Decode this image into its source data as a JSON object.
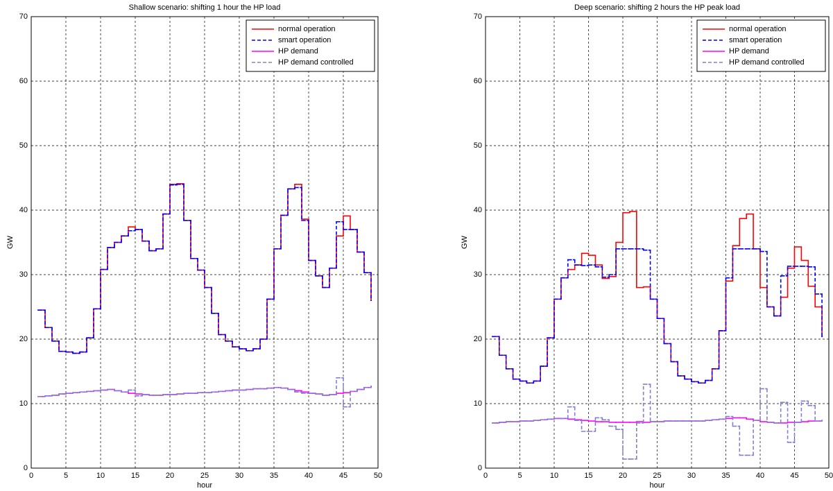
{
  "chart_data": [
    {
      "type": "line",
      "step": true,
      "title": "Shallow scenario: shifting 1 hour the HP load",
      "xlabel": "hour",
      "ylabel": "GW",
      "x": [
        1,
        2,
        3,
        4,
        5,
        6,
        7,
        8,
        9,
        10,
        11,
        12,
        13,
        14,
        15,
        16,
        17,
        18,
        19,
        20,
        21,
        22,
        23,
        24,
        25,
        26,
        27,
        28,
        29,
        30,
        31,
        32,
        33,
        34,
        35,
        36,
        37,
        38,
        39,
        40,
        41,
        42,
        43,
        44,
        45,
        46,
        47,
        48,
        49
      ],
      "xlim": [
        0,
        50
      ],
      "ylim": [
        0,
        70
      ],
      "xticks": [
        0,
        5,
        10,
        15,
        20,
        25,
        30,
        35,
        40,
        45,
        50
      ],
      "yticks": [
        0,
        10,
        20,
        30,
        40,
        50,
        60,
        70
      ],
      "grid": true,
      "legend": "upper right",
      "series": [
        {
          "name": "normal operation",
          "color": "#ff0000",
          "style": "solid",
          "values": [
            24.5,
            21.8,
            19.7,
            18.1,
            18.0,
            17.8,
            18.0,
            20.2,
            24.7,
            30.8,
            34.2,
            35.0,
            36.0,
            37.4,
            37.0,
            35.2,
            33.7,
            34.0,
            39.4,
            44.0,
            44.1,
            38.4,
            32.5,
            30.7,
            28.0,
            24.0,
            20.7,
            19.7,
            18.8,
            18.5,
            18.2,
            18.5,
            20.0,
            26.2,
            34.0,
            39.2,
            43.3,
            44.0,
            38.6,
            32.2,
            29.8,
            28.0,
            31.0,
            36.0,
            39.1,
            37.0,
            33.5,
            30.3,
            26.0
          ]
        },
        {
          "name": "smart operation",
          "color": "#0000ff",
          "style": "dashed",
          "values": [
            24.5,
            21.8,
            19.7,
            18.1,
            18.0,
            17.8,
            18.0,
            20.2,
            24.7,
            30.8,
            34.2,
            35.0,
            36.0,
            36.8,
            37.0,
            35.2,
            33.7,
            34.0,
            39.4,
            43.9,
            44.0,
            38.4,
            32.5,
            30.7,
            28.0,
            24.0,
            20.7,
            19.7,
            18.8,
            18.5,
            18.2,
            18.5,
            20.0,
            26.2,
            34.0,
            39.2,
            43.3,
            43.5,
            38.4,
            32.2,
            29.8,
            28.0,
            31.0,
            38.2,
            37.0,
            37.0,
            33.5,
            30.3,
            26.0
          ]
        },
        {
          "name": "HP demand",
          "color": "#ff00ff",
          "style": "solid",
          "values": [
            11.1,
            11.2,
            11.3,
            11.5,
            11.6,
            11.7,
            11.8,
            11.9,
            12.0,
            12.1,
            12.2,
            12.0,
            11.8,
            11.6,
            11.5,
            11.4,
            11.3,
            11.3,
            11.4,
            11.4,
            11.5,
            11.6,
            11.6,
            11.7,
            11.7,
            11.8,
            11.9,
            12.0,
            12.1,
            12.1,
            12.2,
            12.3,
            12.3,
            12.4,
            12.5,
            12.4,
            12.2,
            12.0,
            11.8,
            11.6,
            11.5,
            11.3,
            11.4,
            11.6,
            11.7,
            11.9,
            12.2,
            12.5,
            12.7
          ]
        },
        {
          "name": "HP demand controlled",
          "color": "#8080d0",
          "style": "dashed",
          "values": [
            11.1,
            11.2,
            11.3,
            11.5,
            11.6,
            11.7,
            11.8,
            11.9,
            12.0,
            12.1,
            12.2,
            12.0,
            11.8,
            12.1,
            11.2,
            11.4,
            11.3,
            11.3,
            11.4,
            11.4,
            11.5,
            11.6,
            11.6,
            11.7,
            11.7,
            11.8,
            11.9,
            12.0,
            12.1,
            12.1,
            12.2,
            12.3,
            12.3,
            12.4,
            12.5,
            12.4,
            12.2,
            11.8,
            11.6,
            11.6,
            11.5,
            11.3,
            11.4,
            14.0,
            9.5,
            11.9,
            12.2,
            12.5,
            12.7
          ]
        }
      ]
    },
    {
      "type": "line",
      "step": true,
      "title": "Deep scenario: shifting 2 hours the HP peak load",
      "xlabel": "hour",
      "ylabel": "GW",
      "x": [
        1,
        2,
        3,
        4,
        5,
        6,
        7,
        8,
        9,
        10,
        11,
        12,
        13,
        14,
        15,
        16,
        17,
        18,
        19,
        20,
        21,
        22,
        23,
        24,
        25,
        26,
        27,
        28,
        29,
        30,
        31,
        32,
        33,
        34,
        35,
        36,
        37,
        38,
        39,
        40,
        41,
        42,
        43,
        44,
        45,
        46,
        47,
        48,
        49
      ],
      "xlim": [
        0,
        50
      ],
      "ylim": [
        0,
        70
      ],
      "xticks": [
        0,
        5,
        10,
        15,
        20,
        25,
        30,
        35,
        40,
        45,
        50
      ],
      "yticks": [
        0,
        10,
        20,
        30,
        40,
        50,
        60,
        70
      ],
      "grid": true,
      "legend": "upper right",
      "series": [
        {
          "name": "normal operation",
          "color": "#ff0000",
          "style": "solid",
          "values": [
            20.4,
            17.5,
            15.4,
            13.8,
            13.5,
            13.2,
            13.5,
            15.8,
            20.2,
            26.2,
            29.5,
            30.8,
            31.5,
            33.3,
            33.0,
            31.5,
            29.4,
            29.7,
            35.0,
            39.6,
            39.8,
            28.0,
            28.1,
            26.2,
            23.2,
            19.3,
            16.5,
            14.3,
            13.8,
            13.4,
            13.2,
            13.6,
            15.4,
            21.3,
            29.0,
            34.5,
            38.7,
            39.4,
            34.0,
            28.0,
            25.0,
            23.6,
            26.5,
            31.0,
            34.3,
            32.2,
            28.2,
            25.0,
            20.4
          ]
        },
        {
          "name": "smart operation",
          "color": "#0000ff",
          "style": "dashed",
          "values": [
            20.4,
            17.5,
            15.4,
            13.8,
            13.5,
            13.2,
            13.5,
            15.8,
            20.2,
            26.2,
            29.5,
            32.3,
            31.5,
            31.4,
            31.5,
            31.2,
            29.6,
            30.0,
            34.0,
            34.0,
            34.0,
            34.0,
            33.8,
            26.2,
            23.2,
            19.3,
            16.5,
            14.3,
            13.8,
            13.4,
            13.2,
            13.6,
            15.4,
            21.3,
            29.5,
            34.0,
            34.0,
            34.0,
            34.0,
            33.6,
            25.0,
            23.6,
            29.8,
            31.3,
            31.3,
            31.3,
            31.2,
            27.0,
            20.4
          ]
        },
        {
          "name": "HP demand",
          "color": "#ff00ff",
          "style": "solid",
          "values": [
            7.0,
            7.1,
            7.2,
            7.2,
            7.3,
            7.3,
            7.4,
            7.5,
            7.6,
            7.7,
            7.7,
            7.6,
            7.5,
            7.4,
            7.3,
            7.2,
            7.2,
            7.1,
            7.1,
            7.1,
            7.1,
            7.2,
            7.1,
            7.2,
            7.2,
            7.3,
            7.3,
            7.3,
            7.3,
            7.3,
            7.3,
            7.4,
            7.5,
            7.6,
            7.7,
            7.8,
            7.8,
            7.6,
            7.4,
            7.2,
            7.1,
            7.0,
            7.0,
            7.1,
            7.1,
            7.2,
            7.3,
            7.3,
            7.4
          ]
        },
        {
          "name": "HP demand controlled",
          "color": "#8080d0",
          "style": "dashed",
          "values": [
            7.0,
            7.1,
            7.2,
            7.2,
            7.3,
            7.3,
            7.4,
            7.5,
            7.6,
            7.7,
            7.7,
            9.5,
            7.4,
            5.7,
            5.7,
            7.8,
            7.5,
            6.5,
            6.0,
            1.4,
            1.4,
            7.0,
            13.0,
            7.2,
            7.2,
            7.3,
            7.3,
            7.3,
            7.3,
            7.3,
            7.3,
            7.4,
            7.5,
            7.6,
            8.0,
            6.5,
            2.0,
            2.0,
            7.4,
            12.3,
            7.1,
            7.0,
            10.2,
            4.0,
            7.1,
            10.4,
            9.7,
            7.3,
            7.4
          ]
        }
      ]
    }
  ]
}
